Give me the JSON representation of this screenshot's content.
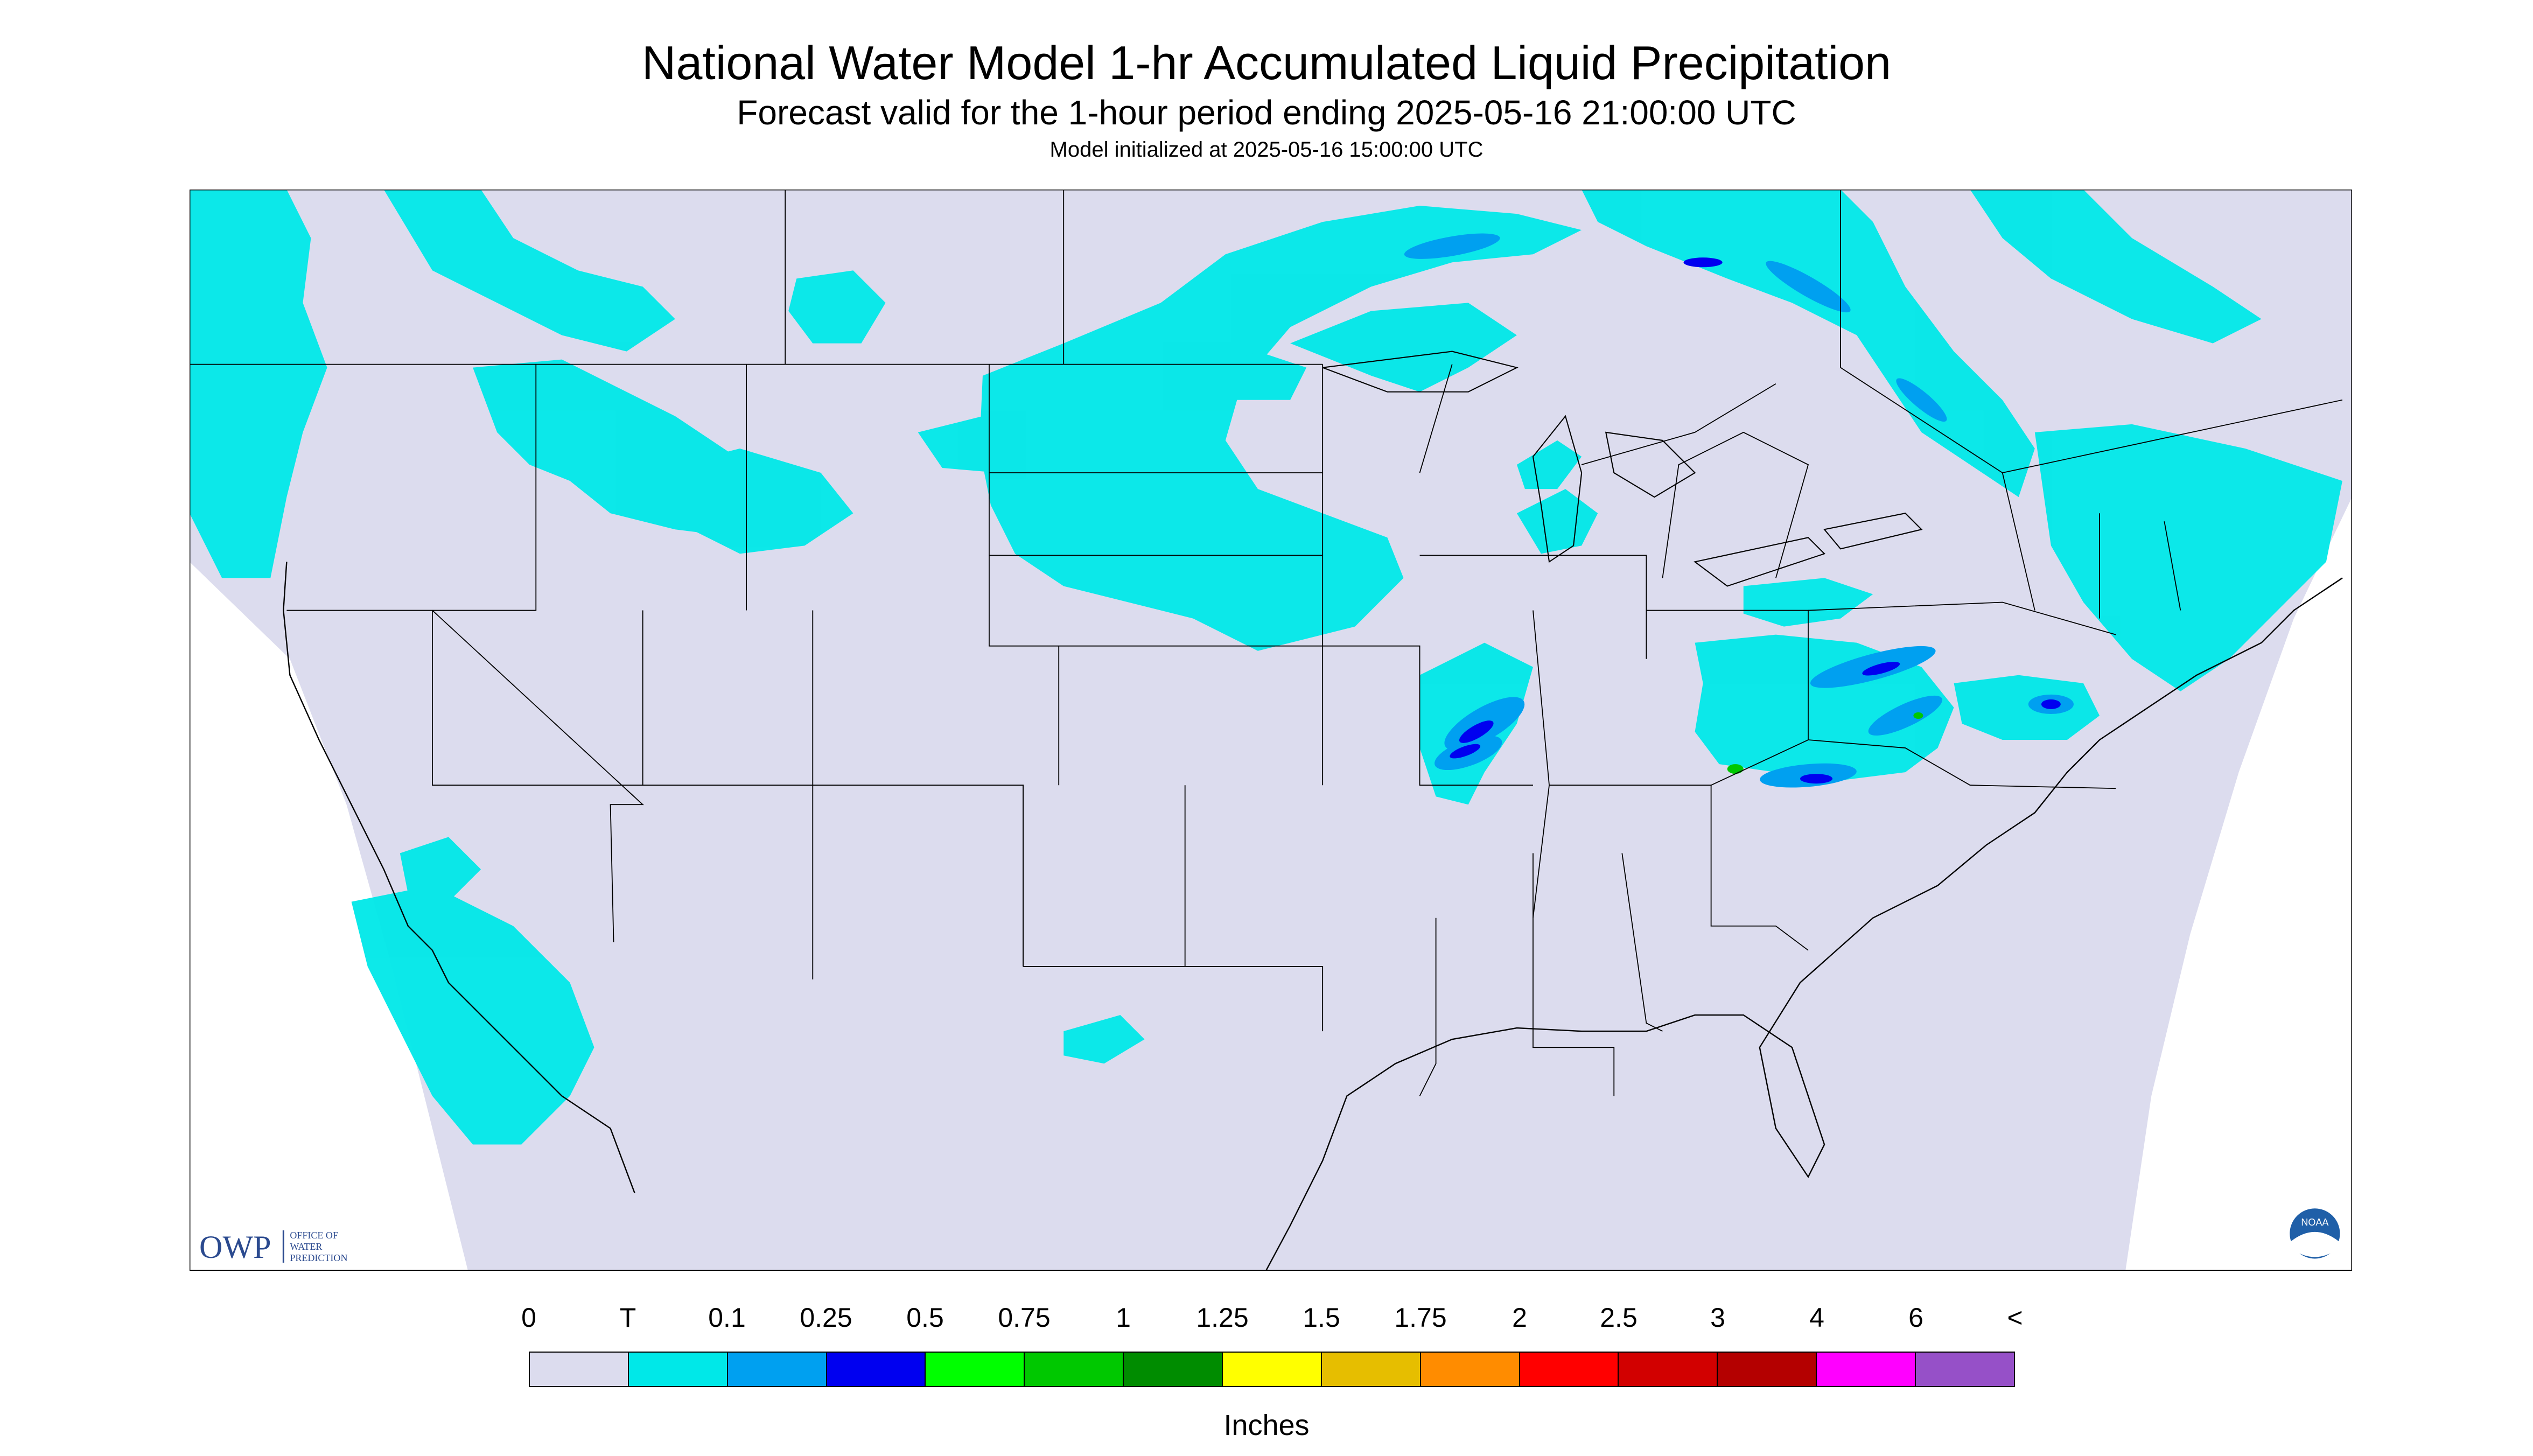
{
  "title": "National Water Model 1-hr Accumulated Liquid Precipitation",
  "subtitle": "Forecast valid for the 1-hour period ending 2025-05-16 21:00:00 UTC",
  "init_text": "Model initialized at 2025-05-16 15:00:00 UTC",
  "logos": {
    "owp_mark": "OWP",
    "owp_text": [
      "OFFICE OF",
      "WATER",
      "PREDICTION"
    ],
    "noaa_text": "NOAA"
  },
  "legend": {
    "labels": [
      "0",
      "T",
      "0.1",
      "0.25",
      "0.5",
      "0.75",
      "1",
      "1.25",
      "1.5",
      "1.75",
      "2",
      "2.5",
      "3",
      "4",
      "6",
      "<"
    ],
    "colors": [
      "#dcdcee",
      "#00e8e8",
      "#00a0f0",
      "#0000f0",
      "#00ff00",
      "#00c800",
      "#008c00",
      "#ffff00",
      "#e6be00",
      "#ff8c00",
      "#ff0000",
      "#d20000",
      "#b40000",
      "#ff00ff",
      "#9650c8"
    ],
    "units": "Inches"
  },
  "colors": {
    "domain_fill": "#dcdcee",
    "background": "#ffffff",
    "trace": "#00e8e8",
    "light": "#00a0f0",
    "moderate": "#0000f0",
    "heavy": "#00c800",
    "boundaries": "#000000"
  }
}
